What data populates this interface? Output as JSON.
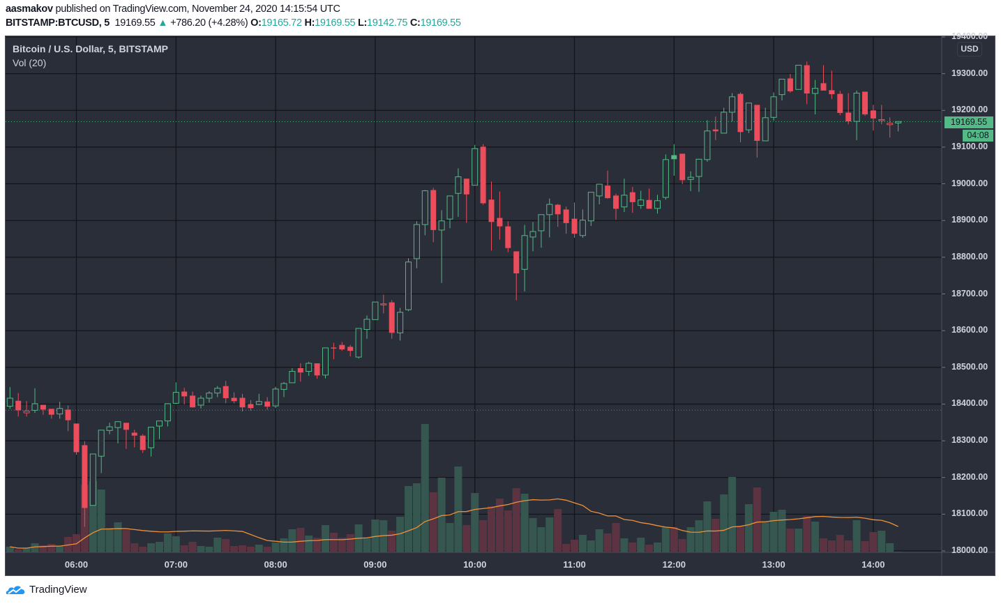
{
  "header": {
    "author": "aasmakov",
    "published": "published on TradingView.com, November 24, 2020 14:15:54 UTC",
    "symbol": "BITSTAMP:BTCUSD, 5",
    "last": "19169.55",
    "change": "+786.20 (+4.28%)",
    "o_label": "O:",
    "o": "19165.72",
    "h_label": "H:",
    "h": "19169.55",
    "l_label": "L:",
    "l": "19142.75",
    "c_label": "C:",
    "c": "19169.55"
  },
  "legend": {
    "title": "Bitcoin / U.S. Dollar, 5, BITSTAMP",
    "volume": "Vol (20)"
  },
  "axis": {
    "currency": "USD",
    "price_tag": "19169.55",
    "countdown": "04:08",
    "previous_close": 18383.35
  },
  "footer": {
    "brand": "TradingView"
  },
  "colors": {
    "up": "#53b987",
    "down": "#eb4d5c",
    "vol_up": "#35574f",
    "vol_down": "#5c3441",
    "vol_ma": "#f0913a",
    "background": "#2a2e39",
    "grid": "#131419"
  },
  "chart_data": {
    "type": "candlestick",
    "title": "Bitcoin / U.S. Dollar, 5, BITSTAMP",
    "interval_minutes": 5,
    "first_bar_time": "05:20",
    "ylim": [
      18000,
      19400
    ],
    "y_ticks": [
      "19400.00",
      "19300.00",
      "19200.00",
      "19100.00",
      "19000.00",
      "18900.00",
      "18800.00",
      "18700.00",
      "18600.00",
      "18500.00",
      "18400.00",
      "18300.00",
      "18200.00",
      "18100.00",
      "18000.00"
    ],
    "x_ticks": [
      "06:00",
      "07:00",
      "08:00",
      "09:00",
      "10:00",
      "11:00",
      "12:00",
      "13:00",
      "14:00"
    ],
    "grid": true,
    "ohlc": [
      [
        18394,
        18446,
        18387,
        18416
      ],
      [
        18409,
        18430,
        18366,
        18383
      ],
      [
        18376,
        18408,
        18366,
        18381
      ],
      [
        18383,
        18443,
        18376,
        18401
      ],
      [
        18398,
        18398,
        18371,
        18385
      ],
      [
        18387,
        18387,
        18360,
        18371
      ],
      [
        18373,
        18406,
        18360,
        18388
      ],
      [
        18385,
        18396,
        18326,
        18356
      ],
      [
        18347,
        18347,
        18262,
        18269
      ],
      [
        18288,
        18299,
        18066,
        18117
      ],
      [
        18124,
        18264,
        18124,
        18264
      ],
      [
        18258,
        18329,
        18212,
        18329
      ],
      [
        18328,
        18349,
        18318,
        18338
      ],
      [
        18336,
        18352,
        18293,
        18352
      ],
      [
        18349,
        18349,
        18278,
        18330
      ],
      [
        18322,
        18330,
        18282,
        18314
      ],
      [
        18314,
        18318,
        18267,
        18275
      ],
      [
        18281,
        18337,
        18257,
        18337
      ],
      [
        18340,
        18354,
        18305,
        18354
      ],
      [
        18354,
        18401,
        18339,
        18401
      ],
      [
        18402,
        18459,
        18400,
        18432
      ],
      [
        18434,
        18444,
        18399,
        18421
      ],
      [
        18423,
        18434,
        18390,
        18391
      ],
      [
        18397,
        18423,
        18388,
        18416
      ],
      [
        18416,
        18435,
        18404,
        18430
      ],
      [
        18430,
        18449,
        18419,
        18443
      ],
      [
        18449,
        18463,
        18402,
        18416
      ],
      [
        18417,
        18432,
        18402,
        18408
      ],
      [
        18417,
        18428,
        18380,
        18391
      ],
      [
        18400,
        18411,
        18382,
        18389
      ],
      [
        18399,
        18428,
        18397,
        18407
      ],
      [
        18407,
        18419,
        18385,
        18393
      ],
      [
        18395,
        18447,
        18389,
        18441
      ],
      [
        18440,
        18460,
        18419,
        18456
      ],
      [
        18458,
        18498,
        18458,
        18489
      ],
      [
        18498,
        18511,
        18461,
        18486
      ],
      [
        18489,
        18515,
        18477,
        18511
      ],
      [
        18511,
        18511,
        18469,
        18478
      ],
      [
        18479,
        18553,
        18470,
        18553
      ],
      [
        18554,
        18567,
        18522,
        18552
      ],
      [
        18561,
        18569,
        18545,
        18549
      ],
      [
        18556,
        18561,
        18530,
        18545
      ],
      [
        18528,
        18606,
        18524,
        18606
      ],
      [
        18603,
        18641,
        18578,
        18631
      ],
      [
        18630,
        18678,
        18630,
        18678
      ],
      [
        18672,
        18698,
        18647,
        18673
      ],
      [
        18677,
        18683,
        18578,
        18594
      ],
      [
        18594,
        18662,
        18573,
        18650
      ],
      [
        18657,
        18797,
        18653,
        18787
      ],
      [
        18796,
        18898,
        18770,
        18889
      ],
      [
        18889,
        18983,
        18860,
        18981
      ],
      [
        18983,
        18989,
        18841,
        18874
      ],
      [
        18874,
        18928,
        18730,
        18899
      ],
      [
        18904,
        18967,
        18879,
        18967
      ],
      [
        18974,
        19042,
        18910,
        19019
      ],
      [
        19014,
        19014,
        18894,
        18971
      ],
      [
        18996,
        19106,
        18996,
        19096
      ],
      [
        19101,
        19108,
        18943,
        18947
      ],
      [
        18957,
        19006,
        18818,
        18896
      ],
      [
        18907,
        18979,
        18848,
        18884
      ],
      [
        18884,
        18898,
        18814,
        18825
      ],
      [
        18816,
        18816,
        18683,
        18756
      ],
      [
        18767,
        18888,
        18707,
        18859
      ],
      [
        18855,
        18896,
        18816,
        18870
      ],
      [
        18872,
        18916,
        18826,
        18916
      ],
      [
        18916,
        18960,
        18854,
        18944
      ],
      [
        18943,
        18945,
        18883,
        18917
      ],
      [
        18930,
        18938,
        18864,
        18893
      ],
      [
        18905,
        18949,
        18853,
        18864
      ],
      [
        18859,
        18930,
        18853,
        18901
      ],
      [
        18899,
        18977,
        18885,
        18977
      ],
      [
        18967,
        18999,
        18944,
        18999
      ],
      [
        18995,
        19036,
        18959,
        18961
      ],
      [
        18968,
        18973,
        18902,
        18932
      ],
      [
        18937,
        19014,
        18923,
        18969
      ],
      [
        18977,
        18991,
        18921,
        18950
      ],
      [
        18941,
        18981,
        18932,
        18956
      ],
      [
        18956,
        18987,
        18932,
        18932
      ],
      [
        18933,
        18970,
        18919,
        18954
      ],
      [
        18963,
        19080,
        18957,
        19066
      ],
      [
        19078,
        19108,
        19022,
        19067
      ],
      [
        19082,
        19082,
        18999,
        19010
      ],
      [
        19012,
        19034,
        18980,
        19018
      ],
      [
        19020,
        19068,
        18978,
        19067
      ],
      [
        19066,
        19173,
        19060,
        19144
      ],
      [
        19148,
        19183,
        19119,
        19143
      ],
      [
        19138,
        19207,
        19138,
        19195
      ],
      [
        19195,
        19247,
        19170,
        19237
      ],
      [
        19245,
        19249,
        19113,
        19141
      ],
      [
        19147,
        19220,
        19138,
        19220
      ],
      [
        19215,
        19215,
        19071,
        19117
      ],
      [
        19117,
        19207,
        19117,
        19180
      ],
      [
        19181,
        19249,
        19172,
        19237
      ],
      [
        19243,
        19285,
        19227,
        19285
      ],
      [
        19287,
        19299,
        19248,
        19252
      ],
      [
        19257,
        19323,
        19257,
        19323
      ],
      [
        19323,
        19333,
        19217,
        19246
      ],
      [
        19246,
        19283,
        19189,
        19260
      ],
      [
        19274,
        19323,
        19254,
        19254
      ],
      [
        19255,
        19308,
        19231,
        19244
      ],
      [
        19245,
        19253,
        19187,
        19193
      ],
      [
        19194,
        19247,
        19162,
        19170
      ],
      [
        19170,
        19254,
        19119,
        19247
      ],
      [
        19251,
        19251,
        19185,
        19189
      ],
      [
        19200,
        19215,
        19145,
        19178
      ],
      [
        19172,
        19215,
        19162,
        19175
      ],
      [
        19161,
        19181,
        19126,
        19165
      ],
      [
        19165.72,
        19169.55,
        19142.75,
        19169.55
      ]
    ],
    "volume_relative": [
      8,
      4,
      6,
      13,
      10,
      12,
      9,
      22,
      26,
      97,
      102,
      90,
      35,
      43,
      32,
      13,
      8,
      13,
      15,
      27,
      23,
      10,
      15,
      9,
      8,
      21,
      19,
      9,
      10,
      8,
      11,
      8,
      14,
      20,
      33,
      35,
      24,
      21,
      39,
      28,
      21,
      26,
      40,
      20,
      47,
      46,
      31,
      51,
      95,
      99,
      184,
      86,
      107,
      42,
      123,
      39,
      85,
      46,
      66,
      77,
      60,
      92,
      84,
      49,
      36,
      50,
      62,
      12,
      18,
      25,
      17,
      33,
      27,
      42,
      20,
      14,
      21,
      11,
      14,
      36,
      36,
      19,
      36,
      46,
      73,
      48,
      83,
      108,
      37,
      69,
      93,
      43,
      58,
      61,
      34,
      34,
      52,
      44,
      20,
      17,
      25,
      17,
      46,
      16,
      29,
      31,
      13,
      1
    ],
    "volume_ma_period": 20
  }
}
